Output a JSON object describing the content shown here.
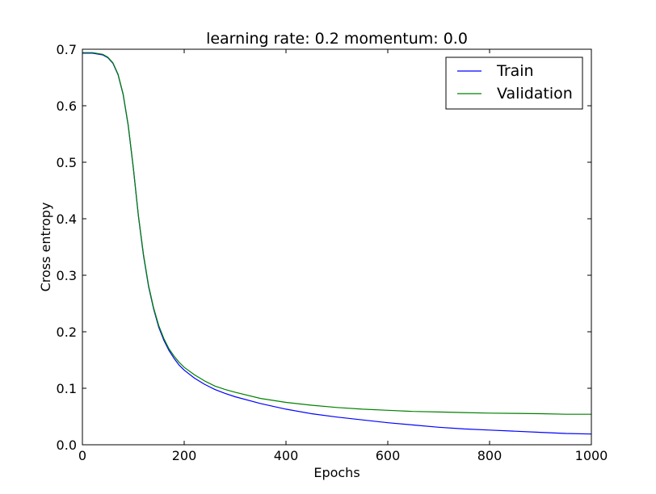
{
  "chart_data": {
    "type": "line",
    "title": "learning rate: 0.2 momentum: 0.0",
    "xlabel": "Epochs",
    "ylabel": "Cross entropy",
    "xlim": [
      0,
      1000
    ],
    "ylim": [
      0.0,
      0.7
    ],
    "xticks": [
      0,
      200,
      400,
      600,
      800,
      1000
    ],
    "xtick_labels": [
      "0",
      "200",
      "400",
      "600",
      "800",
      "1000"
    ],
    "yticks": [
      0.0,
      0.1,
      0.2,
      0.3,
      0.4,
      0.5,
      0.6,
      0.7
    ],
    "ytick_labels": [
      "0.0",
      "0.1",
      "0.2",
      "0.3",
      "0.4",
      "0.5",
      "0.6",
      "0.7"
    ],
    "grid": false,
    "legend_position": "top-right",
    "x": [
      0,
      20,
      40,
      50,
      60,
      70,
      80,
      90,
      100,
      110,
      120,
      130,
      140,
      150,
      160,
      170,
      180,
      190,
      200,
      220,
      240,
      260,
      280,
      300,
      350,
      400,
      450,
      500,
      550,
      600,
      650,
      700,
      750,
      800,
      850,
      900,
      950,
      1000
    ],
    "series": [
      {
        "name": "Train",
        "color": "#0000ff",
        "values": [
          0.693,
          0.693,
          0.69,
          0.685,
          0.675,
          0.655,
          0.62,
          0.565,
          0.49,
          0.405,
          0.335,
          0.28,
          0.24,
          0.208,
          0.185,
          0.167,
          0.153,
          0.141,
          0.132,
          0.118,
          0.107,
          0.098,
          0.091,
          0.085,
          0.073,
          0.063,
          0.055,
          0.049,
          0.044,
          0.039,
          0.035,
          0.031,
          0.028,
          0.026,
          0.024,
          0.022,
          0.02,
          0.019
        ]
      },
      {
        "name": "Validation",
        "color": "#008000",
        "values": [
          0.694,
          0.694,
          0.691,
          0.686,
          0.676,
          0.656,
          0.621,
          0.566,
          0.491,
          0.406,
          0.337,
          0.282,
          0.242,
          0.211,
          0.188,
          0.17,
          0.157,
          0.146,
          0.137,
          0.124,
          0.113,
          0.104,
          0.098,
          0.093,
          0.082,
          0.075,
          0.07,
          0.066,
          0.063,
          0.061,
          0.059,
          0.058,
          0.057,
          0.056,
          0.0555,
          0.055,
          0.054,
          0.054
        ]
      }
    ]
  }
}
